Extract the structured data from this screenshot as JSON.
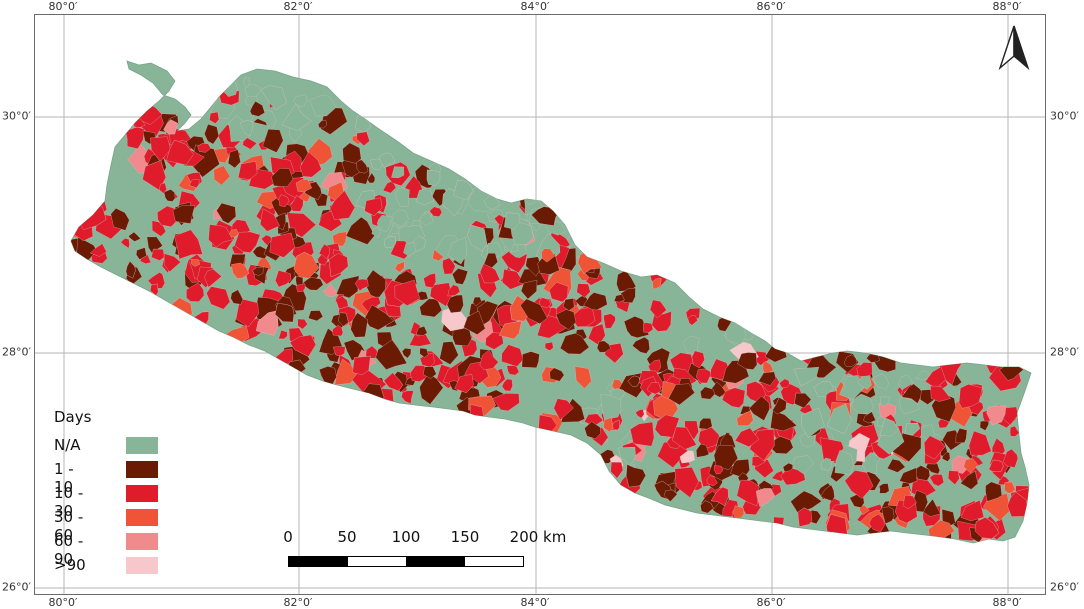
{
  "map": {
    "lon_ticks": [
      "80°0′",
      "82°0′",
      "84°0′",
      "86°0′",
      "88°0′"
    ],
    "lat_ticks": [
      "30°0′",
      "28°0′",
      "26°0′"
    ]
  },
  "legend": {
    "title": "Days",
    "items": [
      {
        "label": "N/A",
        "color": "#88b497"
      },
      {
        "label": "1 - 10",
        "color": "#6b1a04"
      },
      {
        "label": "10 - 30",
        "color": "#e01b2b"
      },
      {
        "label": "30 - 60",
        "color": "#f05436"
      },
      {
        "label": "60 - 90",
        "color": "#f08a8c"
      },
      {
        "label": ">90",
        "color": "#f6c8cc"
      }
    ]
  },
  "scale_bar": {
    "labels": [
      "0",
      "50",
      "100",
      "150",
      "200 km"
    ]
  },
  "north_arrow": {
    "icon": "north-arrow-icon"
  }
}
